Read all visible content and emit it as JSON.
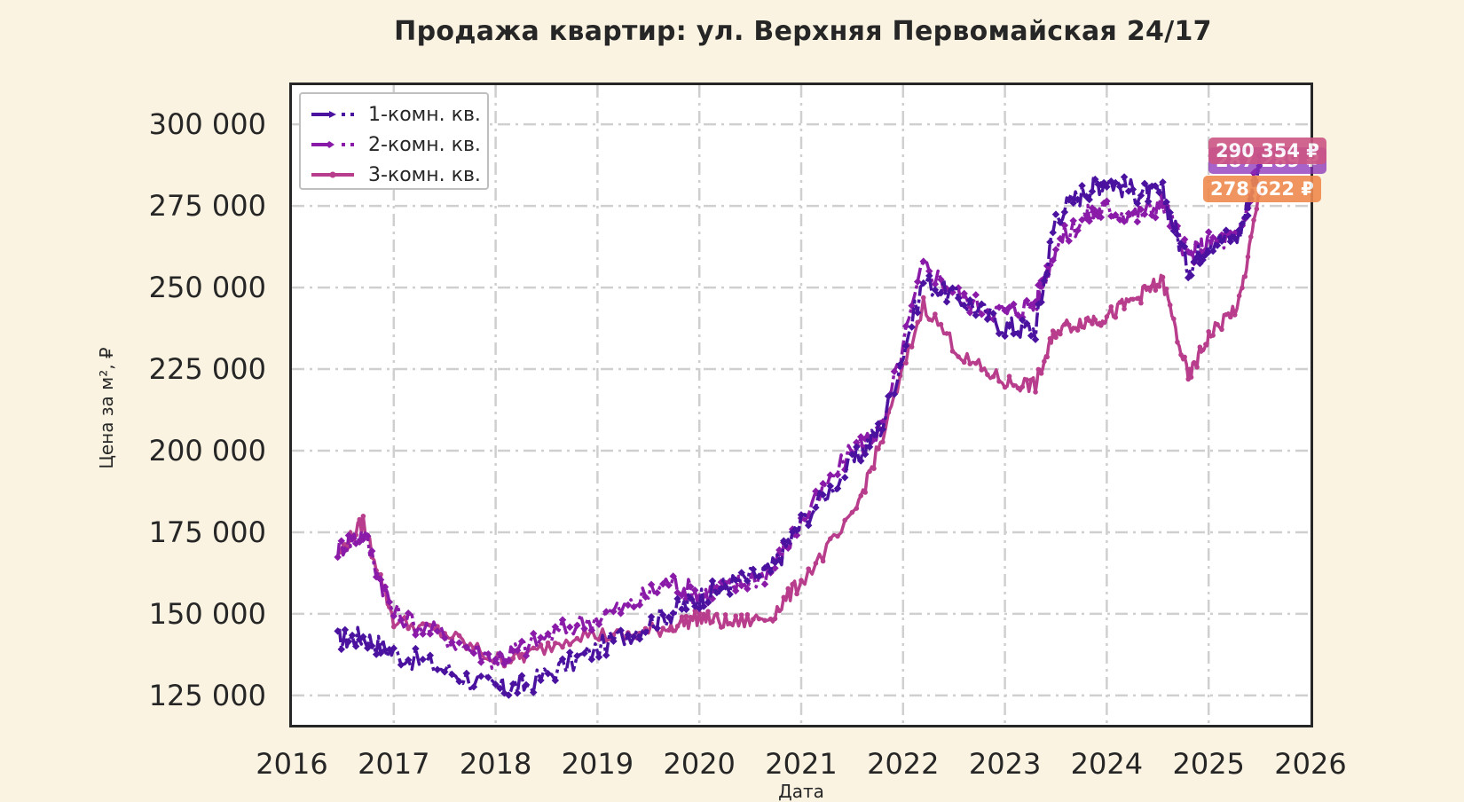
{
  "chart_data": {
    "type": "line",
    "title": "Продажа квартир: ул. Верхняя Первомайская 24/17",
    "xlabel": "Дата",
    "ylabel": "Цена за м², ₽",
    "x_ticks": [
      "2016",
      "2017",
      "2018",
      "2019",
      "2020",
      "2021",
      "2022",
      "2023",
      "2024",
      "2025",
      "2026"
    ],
    "y_ticks": [
      "125 000",
      "150 000",
      "175 000",
      "200 000",
      "225 000",
      "250 000",
      "275 000",
      "300 000"
    ],
    "ylim": [
      116000,
      312000
    ],
    "xlim": [
      2016.0,
      2026.0
    ],
    "grid": true,
    "legend_position": "upper left",
    "x": [
      2016.45,
      2016.7,
      2017.0,
      2017.5,
      2018.0,
      2018.3,
      2018.8,
      2019.3,
      2019.7,
      2020.0,
      2020.3,
      2020.7,
      2021.0,
      2021.5,
      2021.8,
      2022.2,
      2022.6,
      2023.0,
      2023.3,
      2023.5,
      2023.8,
      2024.0,
      2024.3,
      2024.55,
      2024.8,
      2025.0,
      2025.3,
      2025.5
    ],
    "series": [
      {
        "name": "1-комн. кв.",
        "color": "#4b12a0",
        "style": "dashdot-arrow",
        "values": [
          142000,
          143000,
          138000,
          133000,
          127000,
          128000,
          136000,
          144000,
          150000,
          155000,
          159000,
          163000,
          178000,
          196000,
          208000,
          252000,
          246000,
          238000,
          237000,
          272000,
          280000,
          283000,
          279000,
          279000,
          256000,
          264000,
          266000,
          287289
        ]
      },
      {
        "name": "2-комн. кв.",
        "color": "#8a1aa8",
        "style": "dashdot-diamond",
        "values": [
          170000,
          175000,
          150000,
          143000,
          136000,
          140000,
          147000,
          152000,
          160000,
          156000,
          158000,
          163000,
          178000,
          200000,
          207000,
          257000,
          246000,
          242000,
          245000,
          263000,
          272000,
          274000,
          272000,
          276000,
          259000,
          264000,
          265000,
          290354
        ]
      },
      {
        "name": "3-комн. кв.",
        "color": "#b83d8c",
        "style": "solid-dot",
        "values": [
          168000,
          178000,
          148000,
          144000,
          136000,
          137000,
          144000,
          143000,
          146000,
          149000,
          147000,
          149000,
          160000,
          179000,
          204000,
          245000,
          228000,
          221000,
          220000,
          237000,
          240000,
          241000,
          247000,
          252000,
          222000,
          235000,
          245000,
          278622
        ]
      }
    ],
    "end_labels": [
      {
        "text": "290 354 ₽",
        "color": "#cc5585"
      },
      {
        "text": "287 289 ₽",
        "color": "#8a2fb8"
      },
      {
        "text": "278 622 ₽",
        "color": "#ef8a4e"
      }
    ]
  },
  "title": "Продажа квартир: ул. Верхняя Первомайская 24/17",
  "axes": {
    "xlabel": "Дата",
    "ylabel": "Цена за м², ₽"
  },
  "legend": [
    {
      "label": "1-комн. кв."
    },
    {
      "label": "2-комн. кв."
    },
    {
      "label": "3-комн. кв."
    }
  ]
}
